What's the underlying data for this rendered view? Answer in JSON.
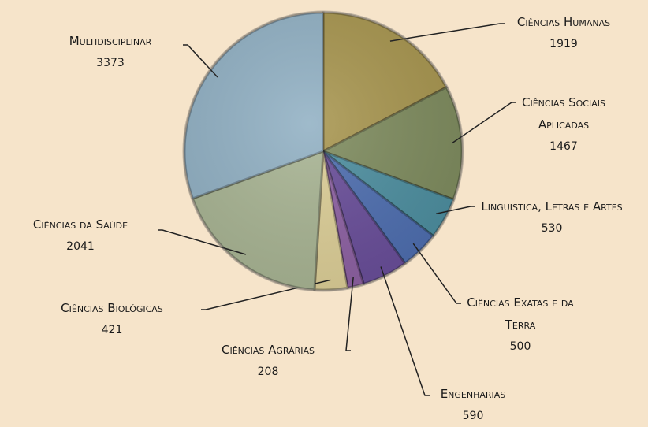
{
  "chart_data": {
    "type": "pie",
    "categories": [
      "Ciências Humanas",
      "Ciências Sociais Aplicadas",
      "Linguistica, Letras e Artes",
      "Ciências Exatas e da Terra",
      "Engenharias",
      "Ciências Agrárias",
      "Ciências Biológicas",
      "Ciências da Saúde",
      "Multidisciplinar"
    ],
    "values": [
      1919,
      1467,
      530,
      500,
      590,
      208,
      421,
      2041,
      3373
    ],
    "colors": [
      "#a89650",
      "#7f8c5f",
      "#4e8fa0",
      "#4f6fb0",
      "#6a4f9a",
      "#8e62a3",
      "#ddcf98",
      "#a9b594",
      "#92b1c4"
    ]
  }
}
